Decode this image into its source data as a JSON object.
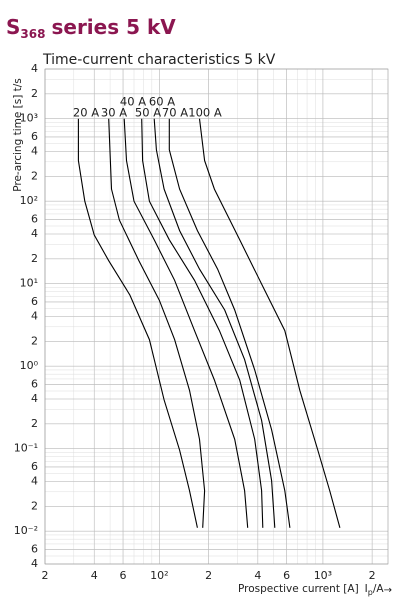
{
  "chart_data": {
    "type": "line",
    "title": {
      "text": "S",
      "sub": "368",
      "rest": "series 5 kV"
    },
    "subtitle": "Time-current characteristics 5 kV",
    "ylabel": "Pre-arcing time [s]  t/s",
    "xlabel": {
      "text": "Prospective current [A]",
      "symbol": "I",
      "symbol_sub": "p",
      "unit": "/A"
    },
    "xscale": "log",
    "yscale": "log",
    "grid": true,
    "minor_grid": true,
    "xlim": [
      20,
      2500
    ],
    "ylim": [
      0.004,
      4000
    ],
    "xticks": [
      {
        "value": 20,
        "label": "2"
      },
      {
        "value": 40,
        "label": "4"
      },
      {
        "value": 60,
        "label": "6"
      },
      {
        "value": 100,
        "label": "10²"
      },
      {
        "value": 200,
        "label": "2"
      },
      {
        "value": 400,
        "label": "4"
      },
      {
        "value": 600,
        "label": "6"
      },
      {
        "value": 1000,
        "label": "10³"
      },
      {
        "value": 2000,
        "label": "2"
      }
    ],
    "yticks": [
      {
        "value": 0.004,
        "label": "4"
      },
      {
        "value": 0.006,
        "label": "6"
      },
      {
        "value": 0.01,
        "label": "10⁻²"
      },
      {
        "value": 0.02,
        "label": "2"
      },
      {
        "value": 0.04,
        "label": "4"
      },
      {
        "value": 0.06,
        "label": "6"
      },
      {
        "value": 0.1,
        "label": "10⁻¹"
      },
      {
        "value": 0.2,
        "label": "2"
      },
      {
        "value": 0.4,
        "label": "4"
      },
      {
        "value": 0.6,
        "label": "6"
      },
      {
        "value": 1,
        "label": "10⁰"
      },
      2,
      4,
      6,
      {
        "value": 10,
        "label": "10¹"
      },
      {
        "value": 20,
        "label": "2"
      },
      {
        "value": 40,
        "label": "4"
      },
      {
        "value": 60,
        "label": "6"
      },
      {
        "value": 100,
        "label": "10²"
      },
      {
        "value": 200,
        "label": "2"
      },
      {
        "value": 400,
        "label": "4"
      },
      {
        "value": 600,
        "label": "6"
      },
      {
        "value": 1000,
        "label": "10³"
      },
      {
        "value": 2000,
        "label": "2"
      },
      {
        "value": 4000,
        "label": "4"
      }
    ],
    "series": [
      {
        "name": "20 A",
        "color": "#000000",
        "x": [
          32,
          32,
          35,
          40,
          49,
          66,
          87,
          107,
          133,
          153,
          171
        ],
        "values": [
          1000,
          310,
          100,
          39,
          19,
          7.3,
          2.1,
          0.39,
          0.096,
          0.031,
          0.011
        ]
      },
      {
        "name": "30 A",
        "color": "#000000",
        "x": [
          49,
          51,
          57,
          75,
          100,
          124,
          153,
          176,
          189,
          184
        ],
        "values": [
          1000,
          140,
          59,
          19,
          6.3,
          2.1,
          0.51,
          0.13,
          0.031,
          0.011
        ]
      },
      {
        "name": "40 A",
        "color": "#000000",
        "x": [
          61,
          63,
          70,
          93,
          124,
          164,
          217,
          289,
          332,
          347
        ],
        "values": [
          1000,
          310,
          100,
          34,
          11,
          2.7,
          0.68,
          0.13,
          0.031,
          0.011
        ]
      },
      {
        "name": "50 A",
        "color": "#000000",
        "x": [
          78,
          79,
          87,
          115,
          164,
          233,
          310,
          383,
          422,
          429
        ],
        "values": [
          1000,
          310,
          100,
          34,
          11,
          2.7,
          0.68,
          0.13,
          0.031,
          0.011
        ]
      },
      {
        "name": "60 A",
        "color": "#000000",
        "x": [
          93,
          96,
          107,
          133,
          176,
          251,
          332,
          422,
          486,
          508
        ],
        "values": [
          1000,
          420,
          140,
          44,
          15,
          4.8,
          1.2,
          0.22,
          0.041,
          0.011
        ]
      },
      {
        "name": "70 A",
        "color": "#000000",
        "x": [
          115,
          115,
          133,
          171,
          227,
          289,
          383,
          486,
          585,
          628
        ],
        "values": [
          1000,
          420,
          140,
          44,
          15,
          4.8,
          0.9,
          0.17,
          0.031,
          0.011
        ]
      },
      {
        "name": "100 A",
        "color": "#000000",
        "x": [
          176,
          189,
          217,
          310,
          441,
          585,
          722,
          931,
          1100,
          1270
        ],
        "values": [
          1000,
          310,
          140,
          34,
          8.3,
          2.7,
          0.51,
          0.096,
          0.031,
          0.011
        ]
      }
    ]
  }
}
